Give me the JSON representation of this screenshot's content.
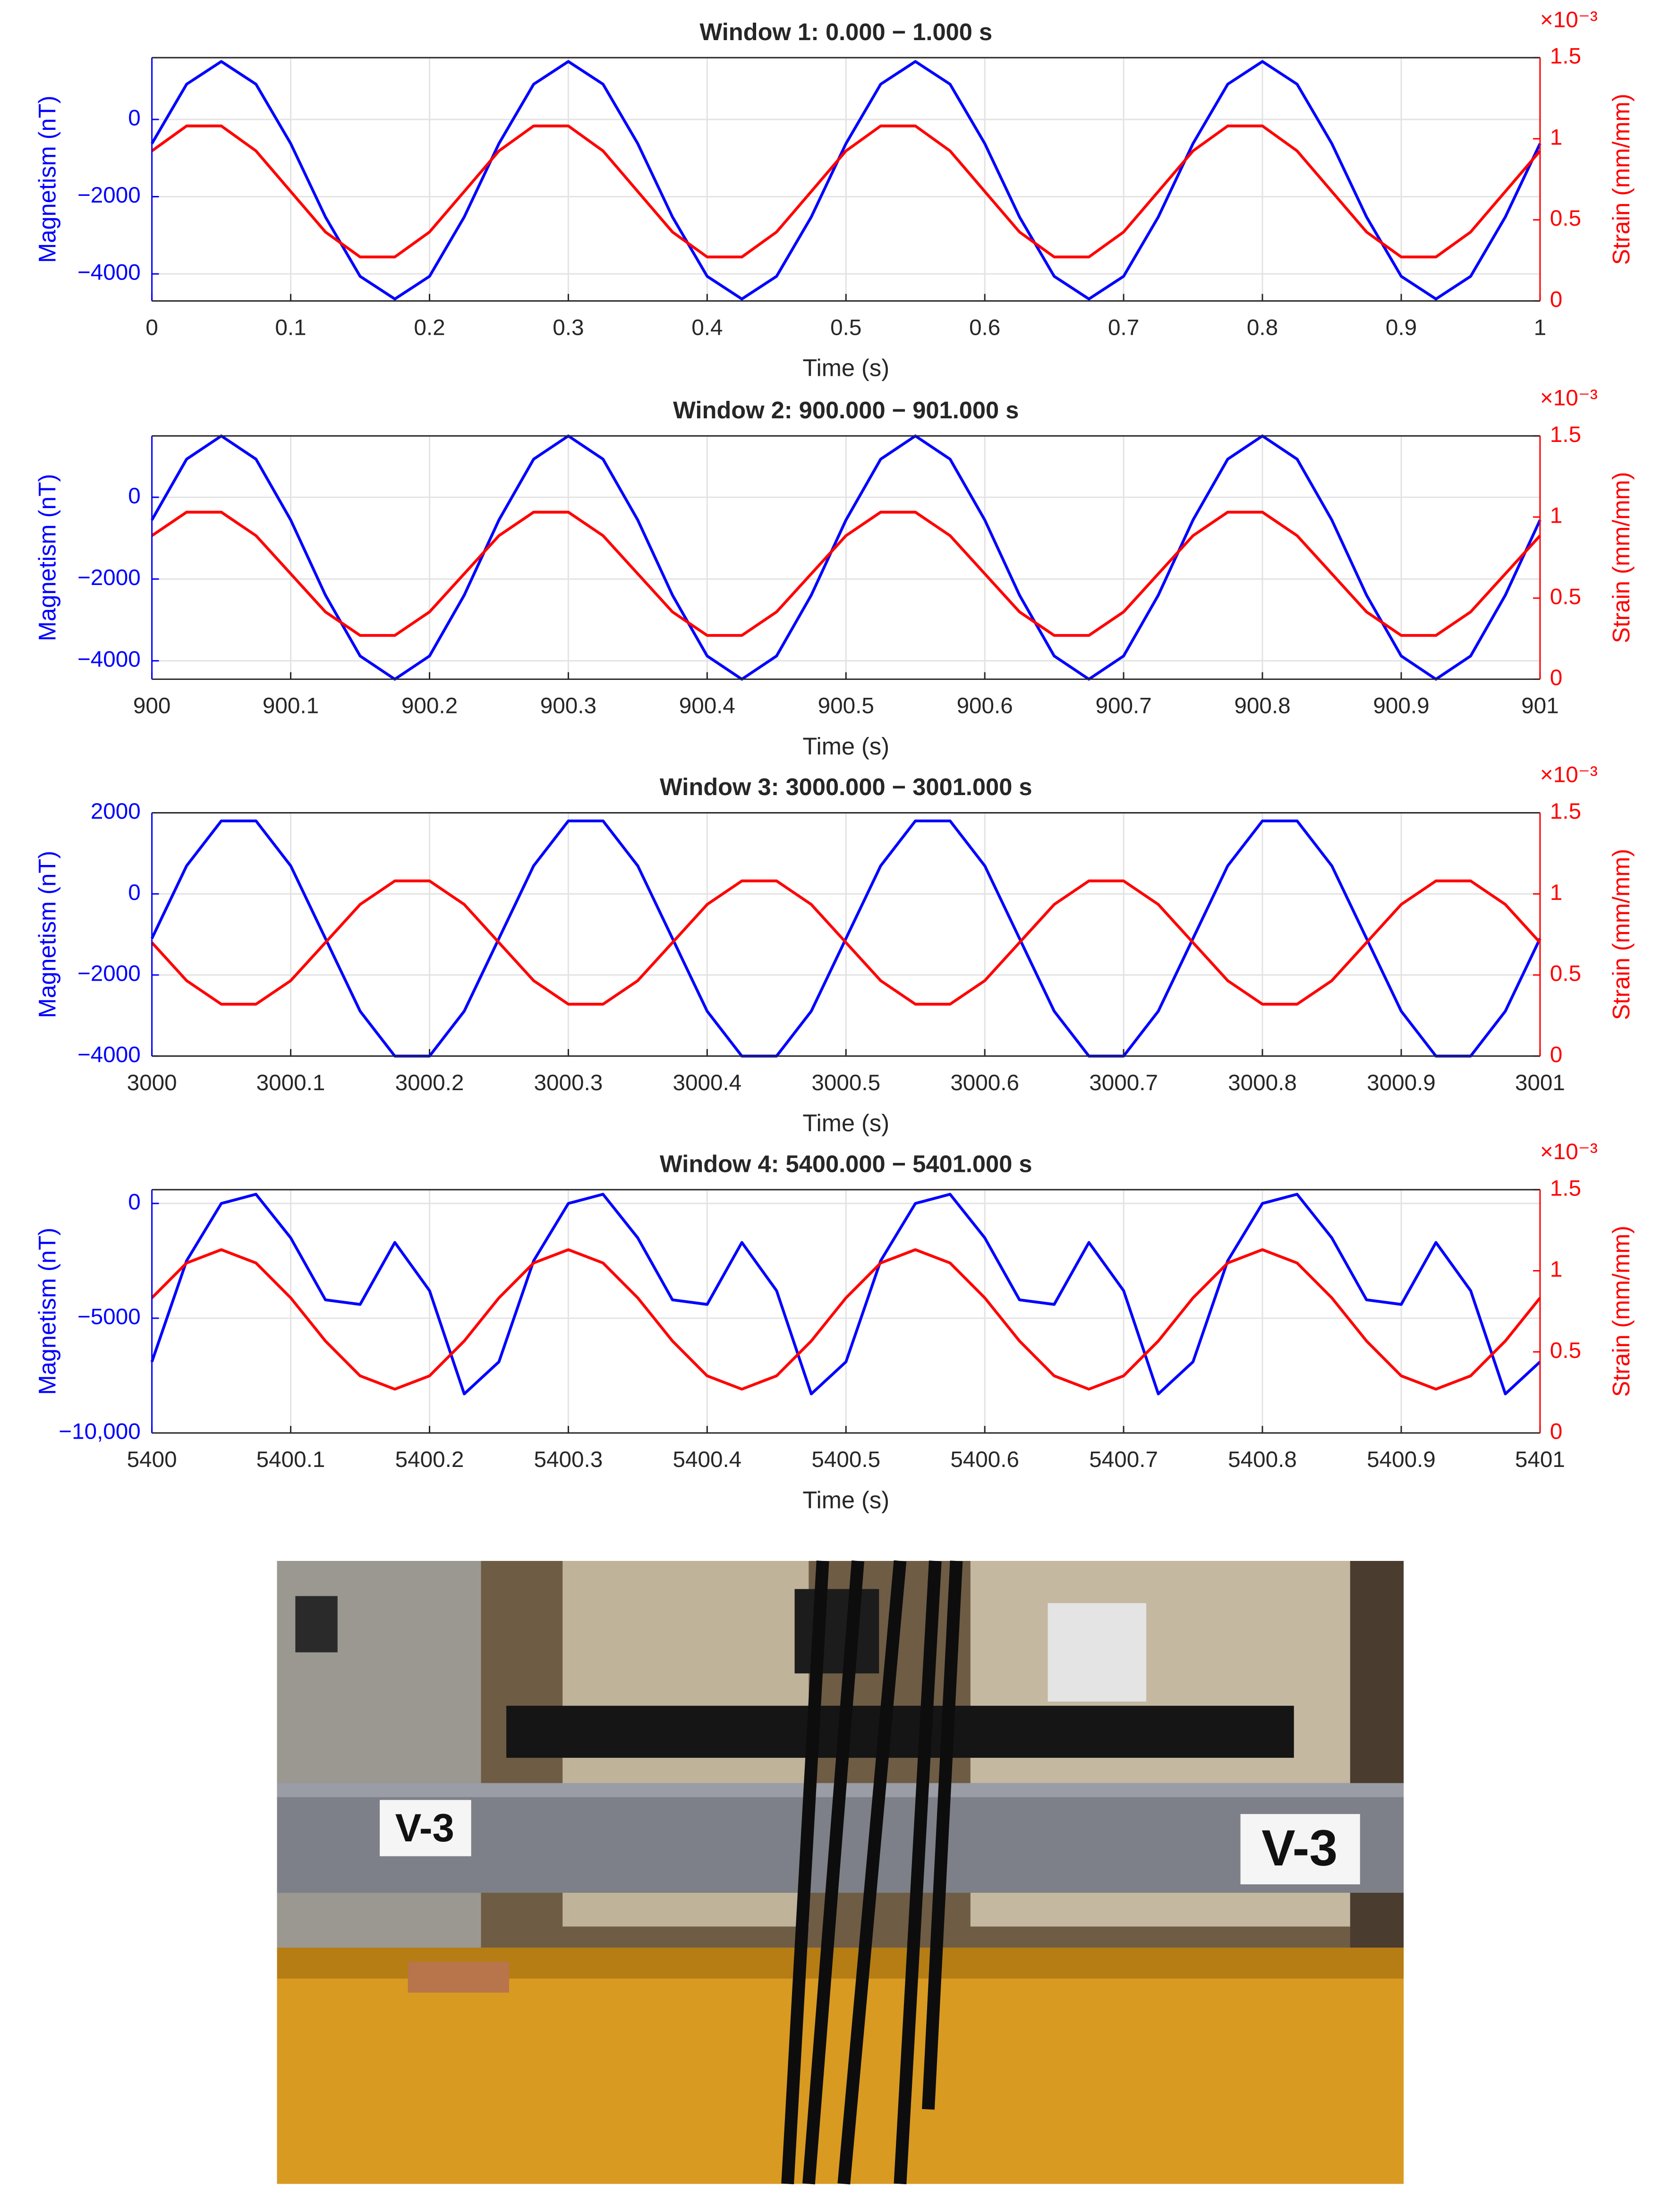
{
  "chart_data": [
    {
      "type": "line",
      "title": "Window 1: 0.000 − 1.000 s",
      "xlabel": "Time (s)",
      "ylabel": "Magnetism (nT)",
      "y2label": "Strain (mm/mm)",
      "y2_exponent": "×10⁻³",
      "grid": true,
      "x": [
        0,
        0.025,
        0.05,
        0.075,
        0.1,
        0.125,
        0.15,
        0.175,
        0.2,
        0.225,
        0.25,
        0.275,
        0.3,
        0.325,
        0.35,
        0.375,
        0.4,
        0.425,
        0.45,
        0.475,
        0.5,
        0.525,
        0.55,
        0.575,
        0.6,
        0.625,
        0.65,
        0.675,
        0.7,
        0.725,
        0.75,
        0.775,
        0.8,
        0.825,
        0.85,
        0.875,
        0.9,
        0.925,
        0.95,
        0.975,
        1
      ],
      "series": [
        {
          "color": "#0000ff",
          "values": [
            -625,
            913,
            1500,
            913,
            -625,
            -2525,
            -4063,
            -4650,
            -4063,
            -2525,
            -625,
            913,
            1500,
            913,
            -625,
            -2525,
            -4063,
            -4650,
            -4063,
            -2525,
            -625,
            913,
            1500,
            913,
            -625,
            -2525,
            -4063,
            -4650,
            -4063,
            -2525,
            -625,
            913,
            1500,
            913,
            -625,
            -2525,
            -4063,
            -4650,
            -4063,
            -2525,
            -625
          ]
        },
        {
          "color": "#ff0000",
          "axis": "y2",
          "values": [
            0.925,
            1.079,
            1.079,
            0.925,
            0.675,
            0.425,
            0.271,
            0.271,
            0.425,
            0.675,
            0.925,
            1.079,
            1.079,
            0.925,
            0.675,
            0.425,
            0.271,
            0.271,
            0.425,
            0.675,
            0.925,
            1.079,
            1.079,
            0.925,
            0.675,
            0.425,
            0.271,
            0.271,
            0.425,
            0.675,
            0.925,
            1.079,
            1.079,
            0.925,
            0.675,
            0.425,
            0.271,
            0.271,
            0.425,
            0.675,
            0.925
          ]
        }
      ],
      "xlim": [
        0,
        1
      ],
      "xticks": [
        0,
        0.1,
        0.2,
        0.3,
        0.4,
        0.5,
        0.6,
        0.7,
        0.8,
        0.9,
        1
      ],
      "ylim": [
        -4700,
        1600
      ],
      "yticks": [
        {
          "value": -4000,
          "label": "−4000"
        },
        {
          "value": -2000,
          "label": "−2000"
        },
        0
      ],
      "y2lim": [
        0,
        1.5
      ],
      "y2ticks": [
        0,
        0.5,
        1,
        1.5
      ]
    },
    {
      "type": "line",
      "title": "Window 2: 900.000 − 901.000 s",
      "xlabel": "Time (s)",
      "ylabel": "Magnetism (nT)",
      "y2label": "Strain (mm/mm)",
      "y2_exponent": "×10⁻³",
      "grid": true,
      "x": [
        900,
        900.025,
        900.05,
        900.075,
        900.1,
        900.125,
        900.15,
        900.175,
        900.2,
        900.225,
        900.25,
        900.275,
        900.3,
        900.325,
        900.35,
        900.375,
        900.4,
        900.425,
        900.45,
        900.475,
        900.5,
        900.525,
        900.55,
        900.575,
        900.6,
        900.625,
        900.65,
        900.675,
        900.7,
        900.725,
        900.75,
        900.775,
        900.8,
        900.825,
        900.85,
        900.875,
        900.9,
        900.925,
        900.95,
        900.975,
        901
      ],
      "series": [
        {
          "color": "#0000ff",
          "values": [
            -556,
            932,
            1500,
            932,
            -556,
            -2394,
            -3882,
            -4450,
            -3882,
            -2394,
            -556,
            932,
            1500,
            932,
            -556,
            -2394,
            -3882,
            -4450,
            -3882,
            -2394,
            -556,
            932,
            1500,
            932,
            -556,
            -2394,
            -3882,
            -4450,
            -3882,
            -2394,
            -556,
            932,
            1500,
            932,
            -556,
            -2394,
            -3882,
            -4450,
            -3882,
            -2394,
            -556
          ]
        },
        {
          "color": "#ff0000",
          "axis": "y2",
          "values": [
            0.885,
            1.03,
            1.03,
            0.885,
            0.65,
            0.415,
            0.27,
            0.27,
            0.415,
            0.65,
            0.885,
            1.03,
            1.03,
            0.885,
            0.65,
            0.415,
            0.27,
            0.27,
            0.415,
            0.65,
            0.885,
            1.03,
            1.03,
            0.885,
            0.65,
            0.415,
            0.27,
            0.27,
            0.415,
            0.65,
            0.885,
            1.03,
            1.03,
            0.885,
            0.65,
            0.415,
            0.27,
            0.27,
            0.415,
            0.65,
            0.885
          ]
        }
      ],
      "xlim": [
        900,
        901
      ],
      "xticks": [
        900,
        900.1,
        900.2,
        900.3,
        900.4,
        900.5,
        900.6,
        900.7,
        900.8,
        900.9,
        901
      ],
      "ylim": [
        -4450,
        1500
      ],
      "yticks": [
        {
          "value": -4000,
          "label": "−4000"
        },
        {
          "value": -2000,
          "label": "−2000"
        },
        0
      ],
      "y2lim": [
        0,
        1.5
      ],
      "y2ticks": [
        0,
        0.5,
        1,
        1.5
      ]
    },
    {
      "type": "line",
      "title": "Window 3: 3000.000 − 3001.000 s",
      "xlabel": "Time (s)",
      "ylabel": "Magnetism (nT)",
      "y2label": "Strain (mm/mm)",
      "y2_exponent": "×10⁻³",
      "grid": true,
      "x": [
        3000,
        3000.025,
        3000.05,
        3000.075,
        3000.1,
        3000.125,
        3000.15,
        3000.175,
        3000.2,
        3000.225,
        3000.25,
        3000.275,
        3000.3,
        3000.325,
        3000.35,
        3000.375,
        3000.4,
        3000.425,
        3000.45,
        3000.475,
        3000.5,
        3000.525,
        3000.55,
        3000.575,
        3000.6,
        3000.625,
        3000.65,
        3000.675,
        3000.7,
        3000.725,
        3000.75,
        3000.775,
        3000.8,
        3000.825,
        3000.85,
        3000.875,
        3000.9,
        3000.925,
        3000.95,
        3000.975,
        3001
      ],
      "series": [
        {
          "color": "#0000ff",
          "values": [
            -1100,
            693,
            1800,
            1800,
            693,
            -1100,
            -2893,
            -4000,
            -4000,
            -2893,
            -1100,
            693,
            1800,
            1800,
            693,
            -1100,
            -2893,
            -4000,
            -4000,
            -2893,
            -1100,
            693,
            1800,
            1800,
            693,
            -1100,
            -2893,
            -4000,
            -4000,
            -2893,
            -1100,
            693,
            1800,
            1800,
            693,
            -1100,
            -2893,
            -4000,
            -4000,
            -2893,
            -1100
          ]
        },
        {
          "color": "#ff0000",
          "axis": "y2",
          "values": [
            0.7,
            0.465,
            0.32,
            0.32,
            0.465,
            0.7,
            0.935,
            1.08,
            1.08,
            0.935,
            0.7,
            0.465,
            0.32,
            0.32,
            0.465,
            0.7,
            0.935,
            1.08,
            1.08,
            0.935,
            0.7,
            0.465,
            0.32,
            0.32,
            0.465,
            0.7,
            0.935,
            1.08,
            1.08,
            0.935,
            0.7,
            0.465,
            0.32,
            0.32,
            0.465,
            0.7,
            0.935,
            1.08,
            1.08,
            0.935,
            0.7
          ]
        }
      ],
      "xlim": [
        3000,
        3001
      ],
      "xticks": [
        3000,
        3000.1,
        3000.2,
        3000.3,
        3000.4,
        3000.5,
        3000.6,
        3000.7,
        3000.8,
        3000.9,
        3001
      ],
      "ylim": [
        -4000,
        2000
      ],
      "yticks": [
        {
          "value": -4000,
          "label": "−4000"
        },
        {
          "value": -2000,
          "label": "−2000"
        },
        0,
        2000
      ],
      "y2lim": [
        0,
        1.5
      ],
      "y2ticks": [
        0,
        0.5,
        1,
        1.5
      ]
    },
    {
      "type": "line",
      "title": "Window 4: 5400.000 − 5401.000 s",
      "xlabel": "Time (s)",
      "ylabel": "Magnetism (nT)",
      "y2label": "Strain (mm/mm)",
      "y2_exponent": "×10⁻³",
      "grid": true,
      "x": [
        5400,
        5400.025,
        5400.05,
        5400.075,
        5400.1,
        5400.125,
        5400.15,
        5400.175,
        5400.2,
        5400.225,
        5400.25,
        5400.275,
        5400.3,
        5400.325,
        5400.35,
        5400.375,
        5400.4,
        5400.425,
        5400.45,
        5400.475,
        5400.5,
        5400.525,
        5400.55,
        5400.575,
        5400.6,
        5400.625,
        5400.65,
        5400.675,
        5400.7,
        5400.725,
        5400.75,
        5400.775,
        5400.8,
        5400.825,
        5400.85,
        5400.875,
        5400.9,
        5400.925,
        5400.95,
        5400.975,
        5401
      ],
      "series": [
        {
          "color": "#0000ff",
          "values": [
            -6900,
            -2500,
            0,
            400,
            -1500,
            -4200,
            -4400,
            -1700,
            -3800,
            -8300,
            -6900,
            -2500,
            0,
            400,
            -1500,
            -4200,
            -4400,
            -1700,
            -3800,
            -8300,
            -6900,
            -2500,
            0,
            400,
            -1500,
            -4200,
            -4400,
            -1700,
            -3800,
            -8300,
            -6900,
            -2500,
            0,
            400,
            -1500,
            -4200,
            -4400,
            -1700,
            -3800,
            -8300,
            -6900
          ]
        },
        {
          "color": "#ff0000",
          "axis": "y2",
          "values": [
            0.833,
            1.048,
            1.13,
            1.048,
            0.833,
            0.567,
            0.352,
            0.27,
            0.352,
            0.567,
            0.833,
            1.048,
            1.13,
            1.048,
            0.833,
            0.567,
            0.352,
            0.27,
            0.352,
            0.567,
            0.833,
            1.048,
            1.13,
            1.048,
            0.833,
            0.567,
            0.352,
            0.27,
            0.352,
            0.567,
            0.833,
            1.048,
            1.13,
            1.048,
            0.833,
            0.567,
            0.352,
            0.27,
            0.352,
            0.567,
            0.833
          ]
        }
      ],
      "xlim": [
        5400,
        5401
      ],
      "xticks": [
        5400,
        5400.1,
        5400.2,
        5400.3,
        5400.4,
        5400.5,
        5400.6,
        5400.7,
        5400.8,
        5400.9,
        5401
      ],
      "ylim": [
        -10000,
        600
      ],
      "yticks": [
        {
          "value": -10000,
          "label": "−10,000"
        },
        {
          "value": -5000,
          "label": "−5000"
        },
        0
      ],
      "y2lim": [
        0,
        1.5
      ],
      "y2ticks": [
        0,
        0.5,
        1,
        1.5
      ]
    }
  ],
  "photo": {
    "labels": [
      "V-3",
      "V-3"
    ]
  }
}
